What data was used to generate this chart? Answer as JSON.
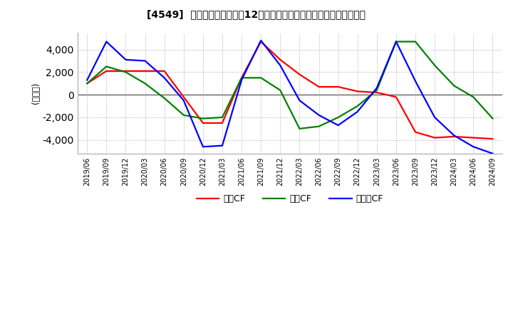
{
  "title": "[4549]  キャッシュフローの12か月移動合計の対前年同期増減額の推移",
  "ylabel": "(百万円)",
  "ylim": [
    -5200,
    5500
  ],
  "yticks": [
    -4000,
    -2000,
    0,
    2000,
    4000
  ],
  "legend_labels": [
    "営業CF",
    "投資CF",
    "フリーCF"
  ],
  "colors": [
    "#ff0000",
    "#008000",
    "#0000ff"
  ],
  "dates": [
    "2019/06",
    "2019/09",
    "2019/12",
    "2020/03",
    "2020/06",
    "2020/09",
    "2020/12",
    "2021/03",
    "2021/06",
    "2021/09",
    "2021/12",
    "2022/03",
    "2022/06",
    "2022/09",
    "2022/12",
    "2023/03",
    "2023/06",
    "2023/09",
    "2023/12",
    "2024/03",
    "2024/06",
    "2024/09"
  ],
  "eigyo_cf": [
    1000,
    2100,
    2100,
    2100,
    2100,
    -200,
    -2500,
    -2500,
    1500,
    4700,
    3100,
    1800,
    700,
    700,
    300,
    200,
    -200,
    -3300,
    -3800,
    -3700,
    -3800,
    -3900
  ],
  "toshi_cf": [
    1000,
    2500,
    2000,
    1000,
    -300,
    -1800,
    -2100,
    -2000,
    1500,
    1500,
    400,
    -3000,
    -2800,
    -2000,
    -1000,
    400,
    4700,
    4700,
    2600,
    800,
    -200,
    -2100
  ],
  "free_cf": [
    1300,
    4700,
    3100,
    3000,
    1500,
    -500,
    -4600,
    -4500,
    1300,
    4800,
    2600,
    -500,
    -1800,
    -2700,
    -1500,
    600,
    4700,
    1200,
    -2000,
    -3600,
    -4600,
    -5200
  ]
}
